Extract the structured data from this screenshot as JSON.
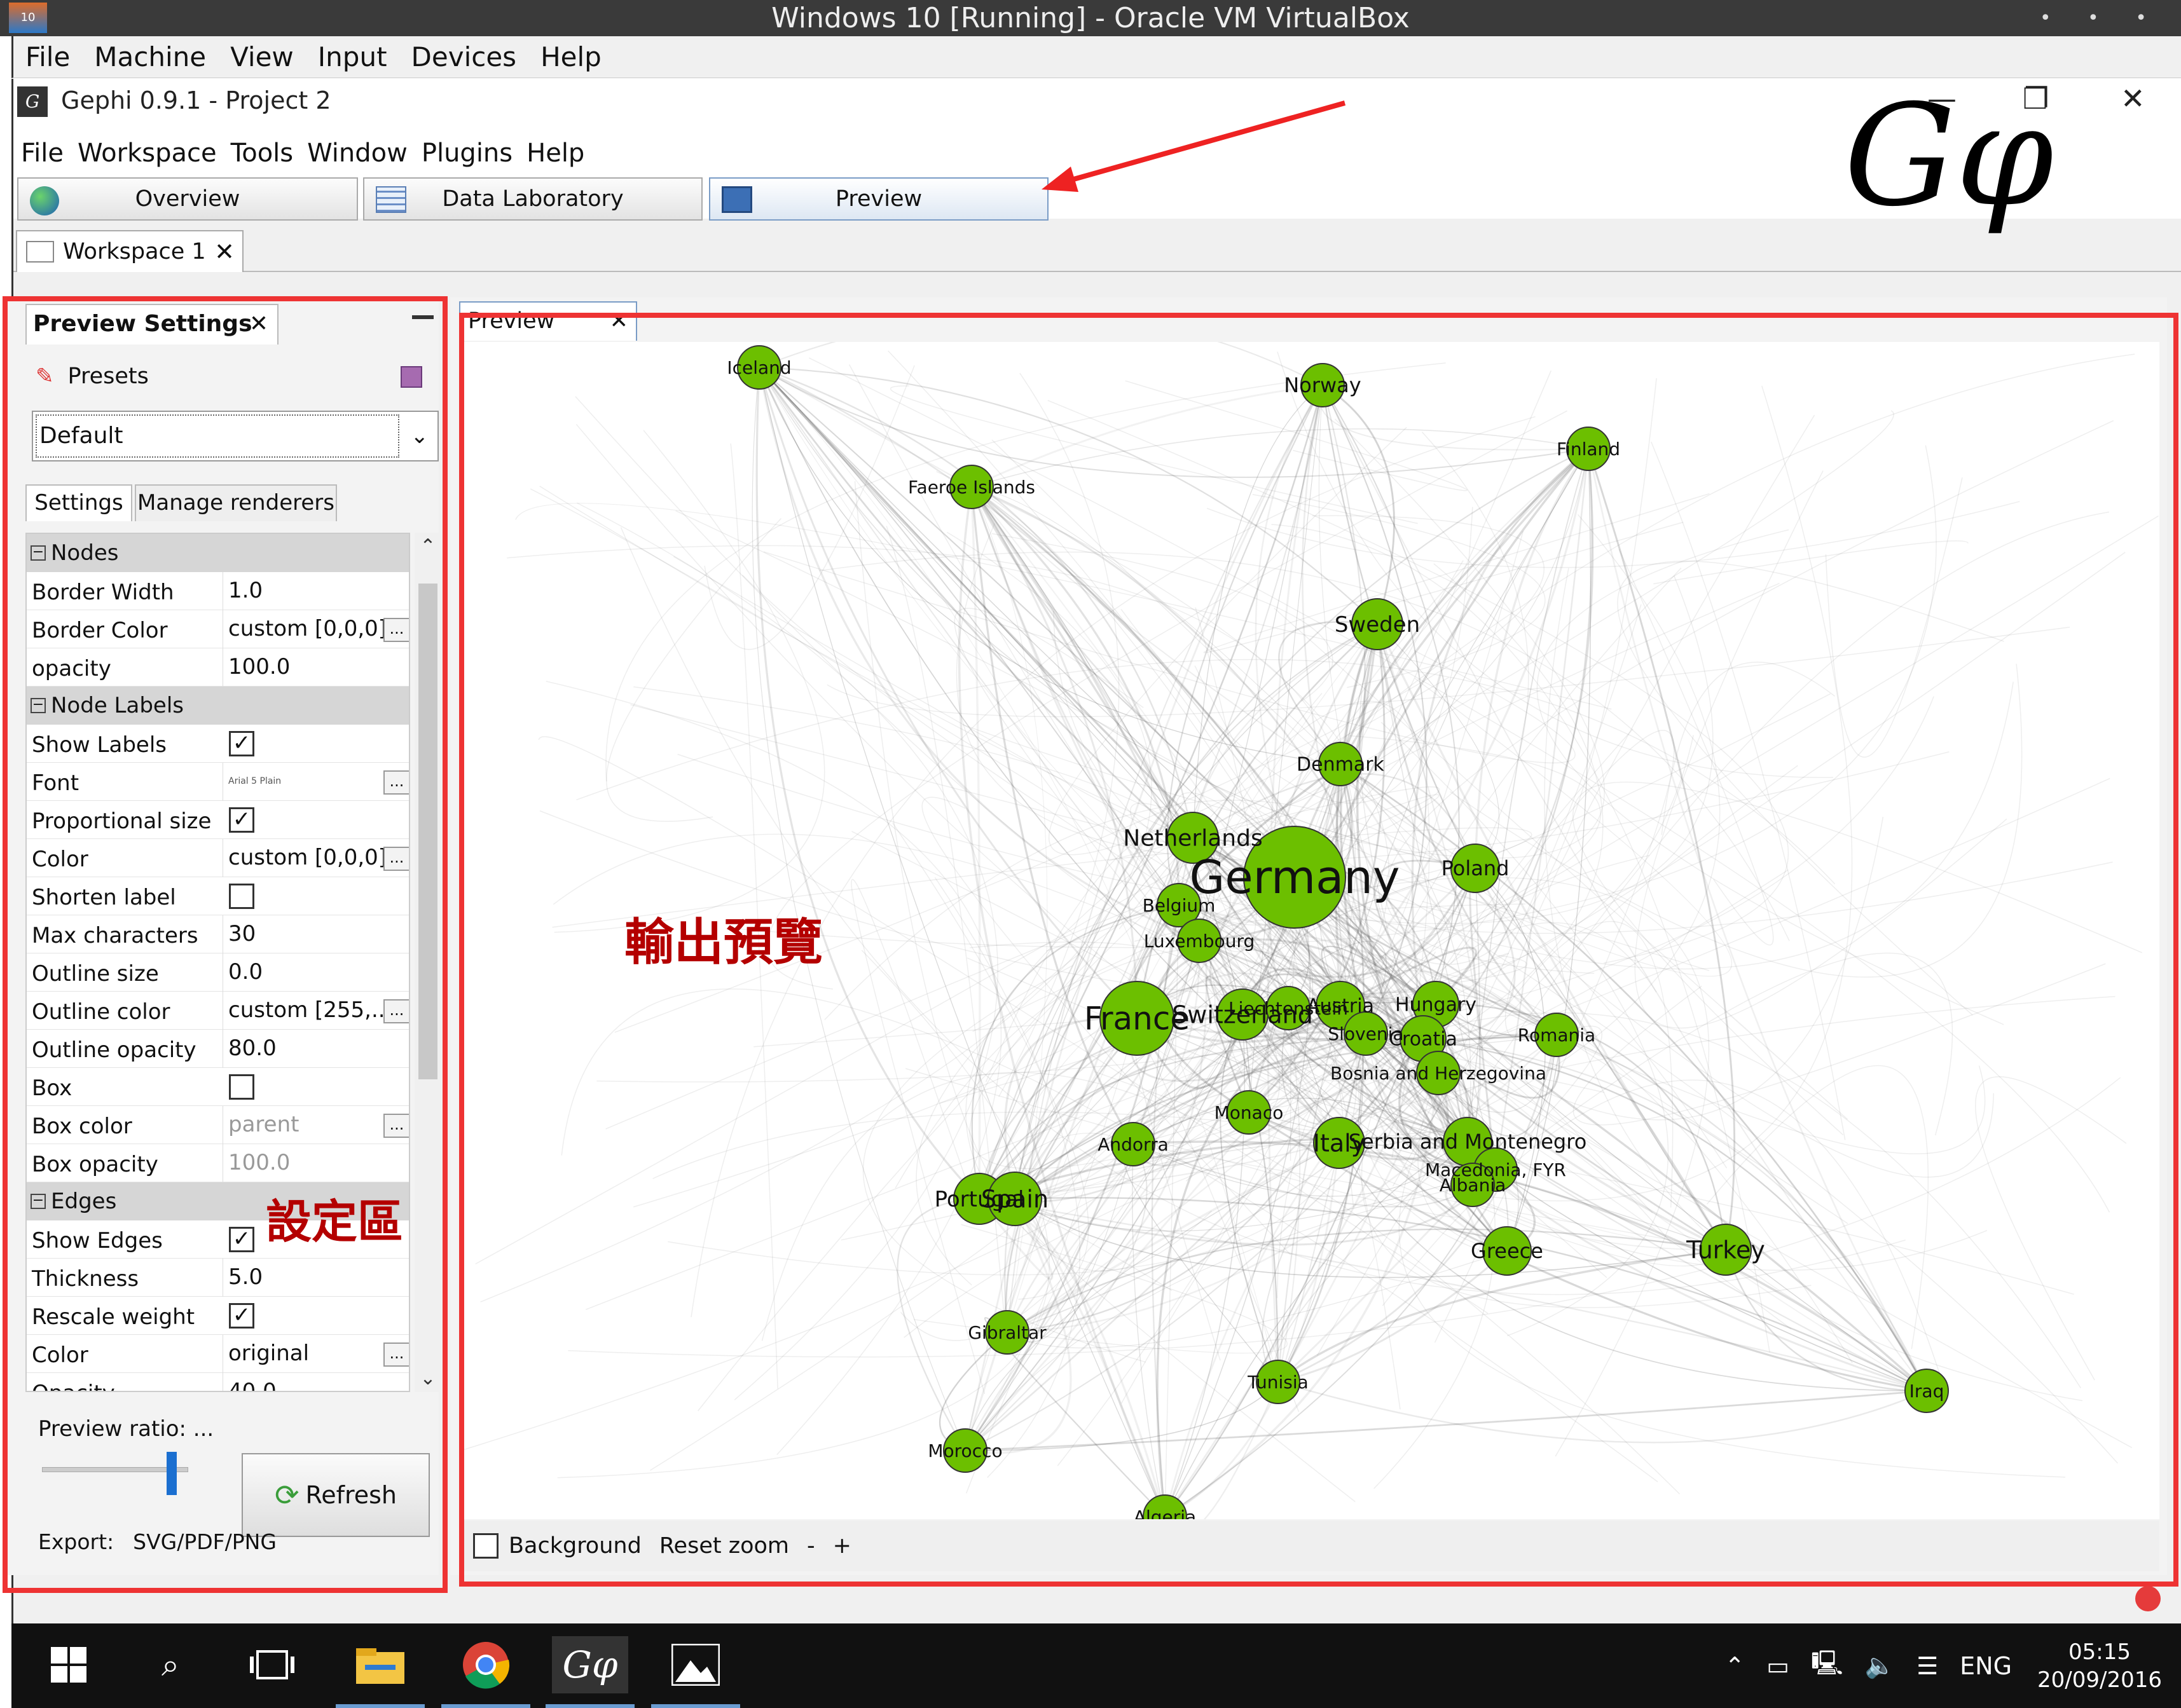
{
  "vbox": {
    "title": "Windows 10 [Running] - Oracle VM VirtualBox",
    "menu": [
      "File",
      "Machine",
      "View",
      "Input",
      "Devices",
      "Help"
    ]
  },
  "app": {
    "title": "Gephi 0.9.1 - Project 2",
    "menu": [
      "File",
      "Workspace",
      "Tools",
      "Window",
      "Plugins",
      "Help"
    ],
    "modes": {
      "overview": "Overview",
      "data_laboratory": "Data Laboratory",
      "preview": "Preview"
    },
    "workspace_tab": "Workspace 1"
  },
  "settings_panel": {
    "title": "Preview Settings",
    "presets_label": "Presets",
    "preset_value": "Default",
    "tabs": {
      "settings": "Settings",
      "manage": "Manage renderers"
    },
    "categories": {
      "nodes": "Nodes",
      "node_labels": "Node Labels",
      "edges": "Edges"
    },
    "rows": {
      "border_width": {
        "label": "Border Width",
        "value": "1.0"
      },
      "border_color": {
        "label": "Border Color",
        "value": "custom [0,0,0]"
      },
      "opacity": {
        "label": "opacity",
        "value": "100.0"
      },
      "show_labels": {
        "label": "Show Labels",
        "checked": true
      },
      "font": {
        "label": "Font",
        "value": "Arial 5 Plain"
      },
      "proportional_size": {
        "label": "Proportional size",
        "checked": true
      },
      "label_color": {
        "label": "Color",
        "value": "custom [0,0,0]"
      },
      "shorten_label": {
        "label": "Shorten label",
        "checked": false
      },
      "max_characters": {
        "label": "Max characters",
        "value": "30"
      },
      "outline_size": {
        "label": "Outline size",
        "value": "0.0"
      },
      "outline_color": {
        "label": "Outline color",
        "value": "custom [255,..."
      },
      "outline_opacity": {
        "label": "Outline opacity",
        "value": "80.0"
      },
      "box": {
        "label": "Box",
        "checked": false
      },
      "box_color": {
        "label": "Box color",
        "value": "parent"
      },
      "box_opacity": {
        "label": "Box opacity",
        "value": "100.0"
      },
      "show_edges": {
        "label": "Show Edges",
        "checked": true
      },
      "thickness": {
        "label": "Thickness",
        "value": "5.0"
      },
      "rescale_weight": {
        "label": "Rescale weight",
        "checked": true
      },
      "edge_color": {
        "label": "Color",
        "value": "original"
      },
      "edge_opacity": {
        "label": "Opacity",
        "value": "40.0"
      }
    },
    "annotation": "設定區",
    "preview_ratio_label": "Preview ratio: ...",
    "refresh_label": "Refresh",
    "export_label": "Export:",
    "export_formats": "SVG/PDF/PNG"
  },
  "preview_panel": {
    "tab_label": "Preview",
    "annotation": "輸出預覽",
    "background_label": "Background",
    "reset_zoom_label": "Reset zoom",
    "zoom_out": "-",
    "zoom_in": "+",
    "countries": [
      "Iceland",
      "Norway",
      "Finland",
      "Faeroe Islands",
      "Sweden",
      "Denmark",
      "Netherlands",
      "Germany",
      "Poland",
      "Belgium",
      "Luxembourg",
      "France",
      "Switzerland",
      "Liechtenstein",
      "Austria",
      "Hungary",
      "Slovenia",
      "Croatia",
      "Romania",
      "Bosnia and Herzegovina",
      "Monaco",
      "Andorra",
      "Italy",
      "Serbia and Montenegro",
      "Macedonia, FYR",
      "Albania",
      "Portugal",
      "Spain",
      "Greece",
      "Turkey",
      "Gibraltar",
      "Tunisia",
      "Iraq",
      "Morocco",
      "Algeria"
    ],
    "node_color": "#6cbf00"
  },
  "taskbar": {
    "language": "ENG",
    "time": "05:15",
    "date": "20/09/2016"
  }
}
